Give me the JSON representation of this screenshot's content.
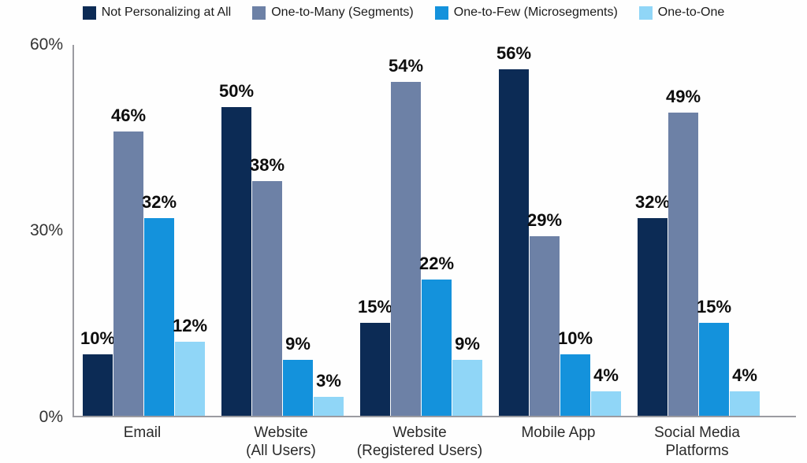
{
  "colors": {
    "background": "#fefefe",
    "axis": "#9b9ba1",
    "value_label_text": "#0d0d0d",
    "tick_text": "#333333",
    "category_text": "#2a2a2a",
    "legend_text": "#1b1b1b"
  },
  "chart_data": {
    "type": "bar",
    "title": "",
    "xlabel": "",
    "ylabel": "",
    "ylim": [
      0,
      60
    ],
    "ytick_labels": [
      "60%",
      "30%",
      "0%"
    ],
    "grid": false,
    "legend_position": "top",
    "value_suffix": "%",
    "categories": [
      "Email",
      "Website\n(All Users)",
      "Website\n(Registered Users)",
      "Mobile App",
      "Social Media\nPlatforms"
    ],
    "series": [
      {
        "name": "Not Personalizing at All",
        "color": "#0c2b55",
        "values": [
          10,
          50,
          15,
          56,
          32
        ]
      },
      {
        "name": "One-to-Many (Segments)",
        "color": "#6d81a6",
        "values": [
          46,
          38,
          54,
          29,
          49
        ]
      },
      {
        "name": "One-to-Few (Microsegments)",
        "color": "#1492dc",
        "values": [
          32,
          9,
          22,
          10,
          15
        ]
      },
      {
        "name": "One-to-One",
        "color": "#90d6f7",
        "values": [
          12,
          3,
          9,
          4,
          4
        ]
      }
    ]
  }
}
